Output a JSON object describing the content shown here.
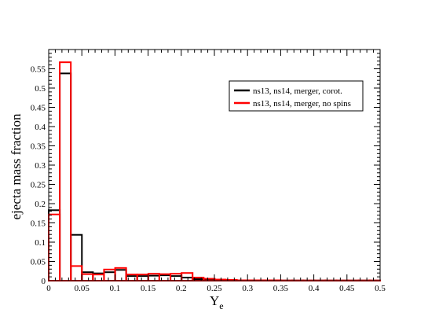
{
  "chart_data": {
    "type": "histogram",
    "xlabel": "Y",
    "xlabel_subscript": "e",
    "ylabel": "ejecta mass fraction",
    "xlim": [
      0,
      0.5
    ],
    "ylim": [
      0,
      0.6
    ],
    "bin_width": 0.0167,
    "x_ticks": [
      "0",
      "0.05",
      "0.1",
      "0.15",
      "0.2",
      "0.25",
      "0.3",
      "0.35",
      "0.4",
      "0.45",
      "0.5"
    ],
    "y_ticks": [
      "0",
      "0.05",
      "0.1",
      "0.15",
      "0.2",
      "0.25",
      "0.3",
      "0.35",
      "0.4",
      "0.45",
      "0.5",
      "0.55"
    ],
    "legend_position": "upper-right",
    "series": [
      {
        "name": "ns13, ns14, merger, corot.",
        "color": "#000000",
        "values": [
          0.183,
          0.538,
          0.119,
          0.022,
          0.019,
          0.022,
          0.028,
          0.012,
          0.012,
          0.013,
          0.014,
          0.012,
          0.008,
          0.004,
          0.003,
          0.002,
          0.001,
          0.001,
          0.001,
          0.001,
          0.001,
          0.0005,
          0.0005,
          0.0005,
          0.0005,
          0.0005,
          0.0005,
          0.0005,
          0.0005,
          0.0005
        ]
      },
      {
        "name": "ns13, ns14, merger, no spins",
        "color": "#ff0000",
        "values": [
          0.172,
          0.567,
          0.038,
          0.017,
          0.016,
          0.029,
          0.033,
          0.016,
          0.016,
          0.018,
          0.017,
          0.018,
          0.02,
          0.008,
          0.005,
          0.003,
          0.002,
          0.001,
          0.001,
          0.001,
          0.001,
          0.0005,
          0.0005,
          0.0005,
          0.0005,
          0.0005,
          0.0005,
          0.0005,
          0.0005,
          0.0005
        ]
      }
    ]
  }
}
